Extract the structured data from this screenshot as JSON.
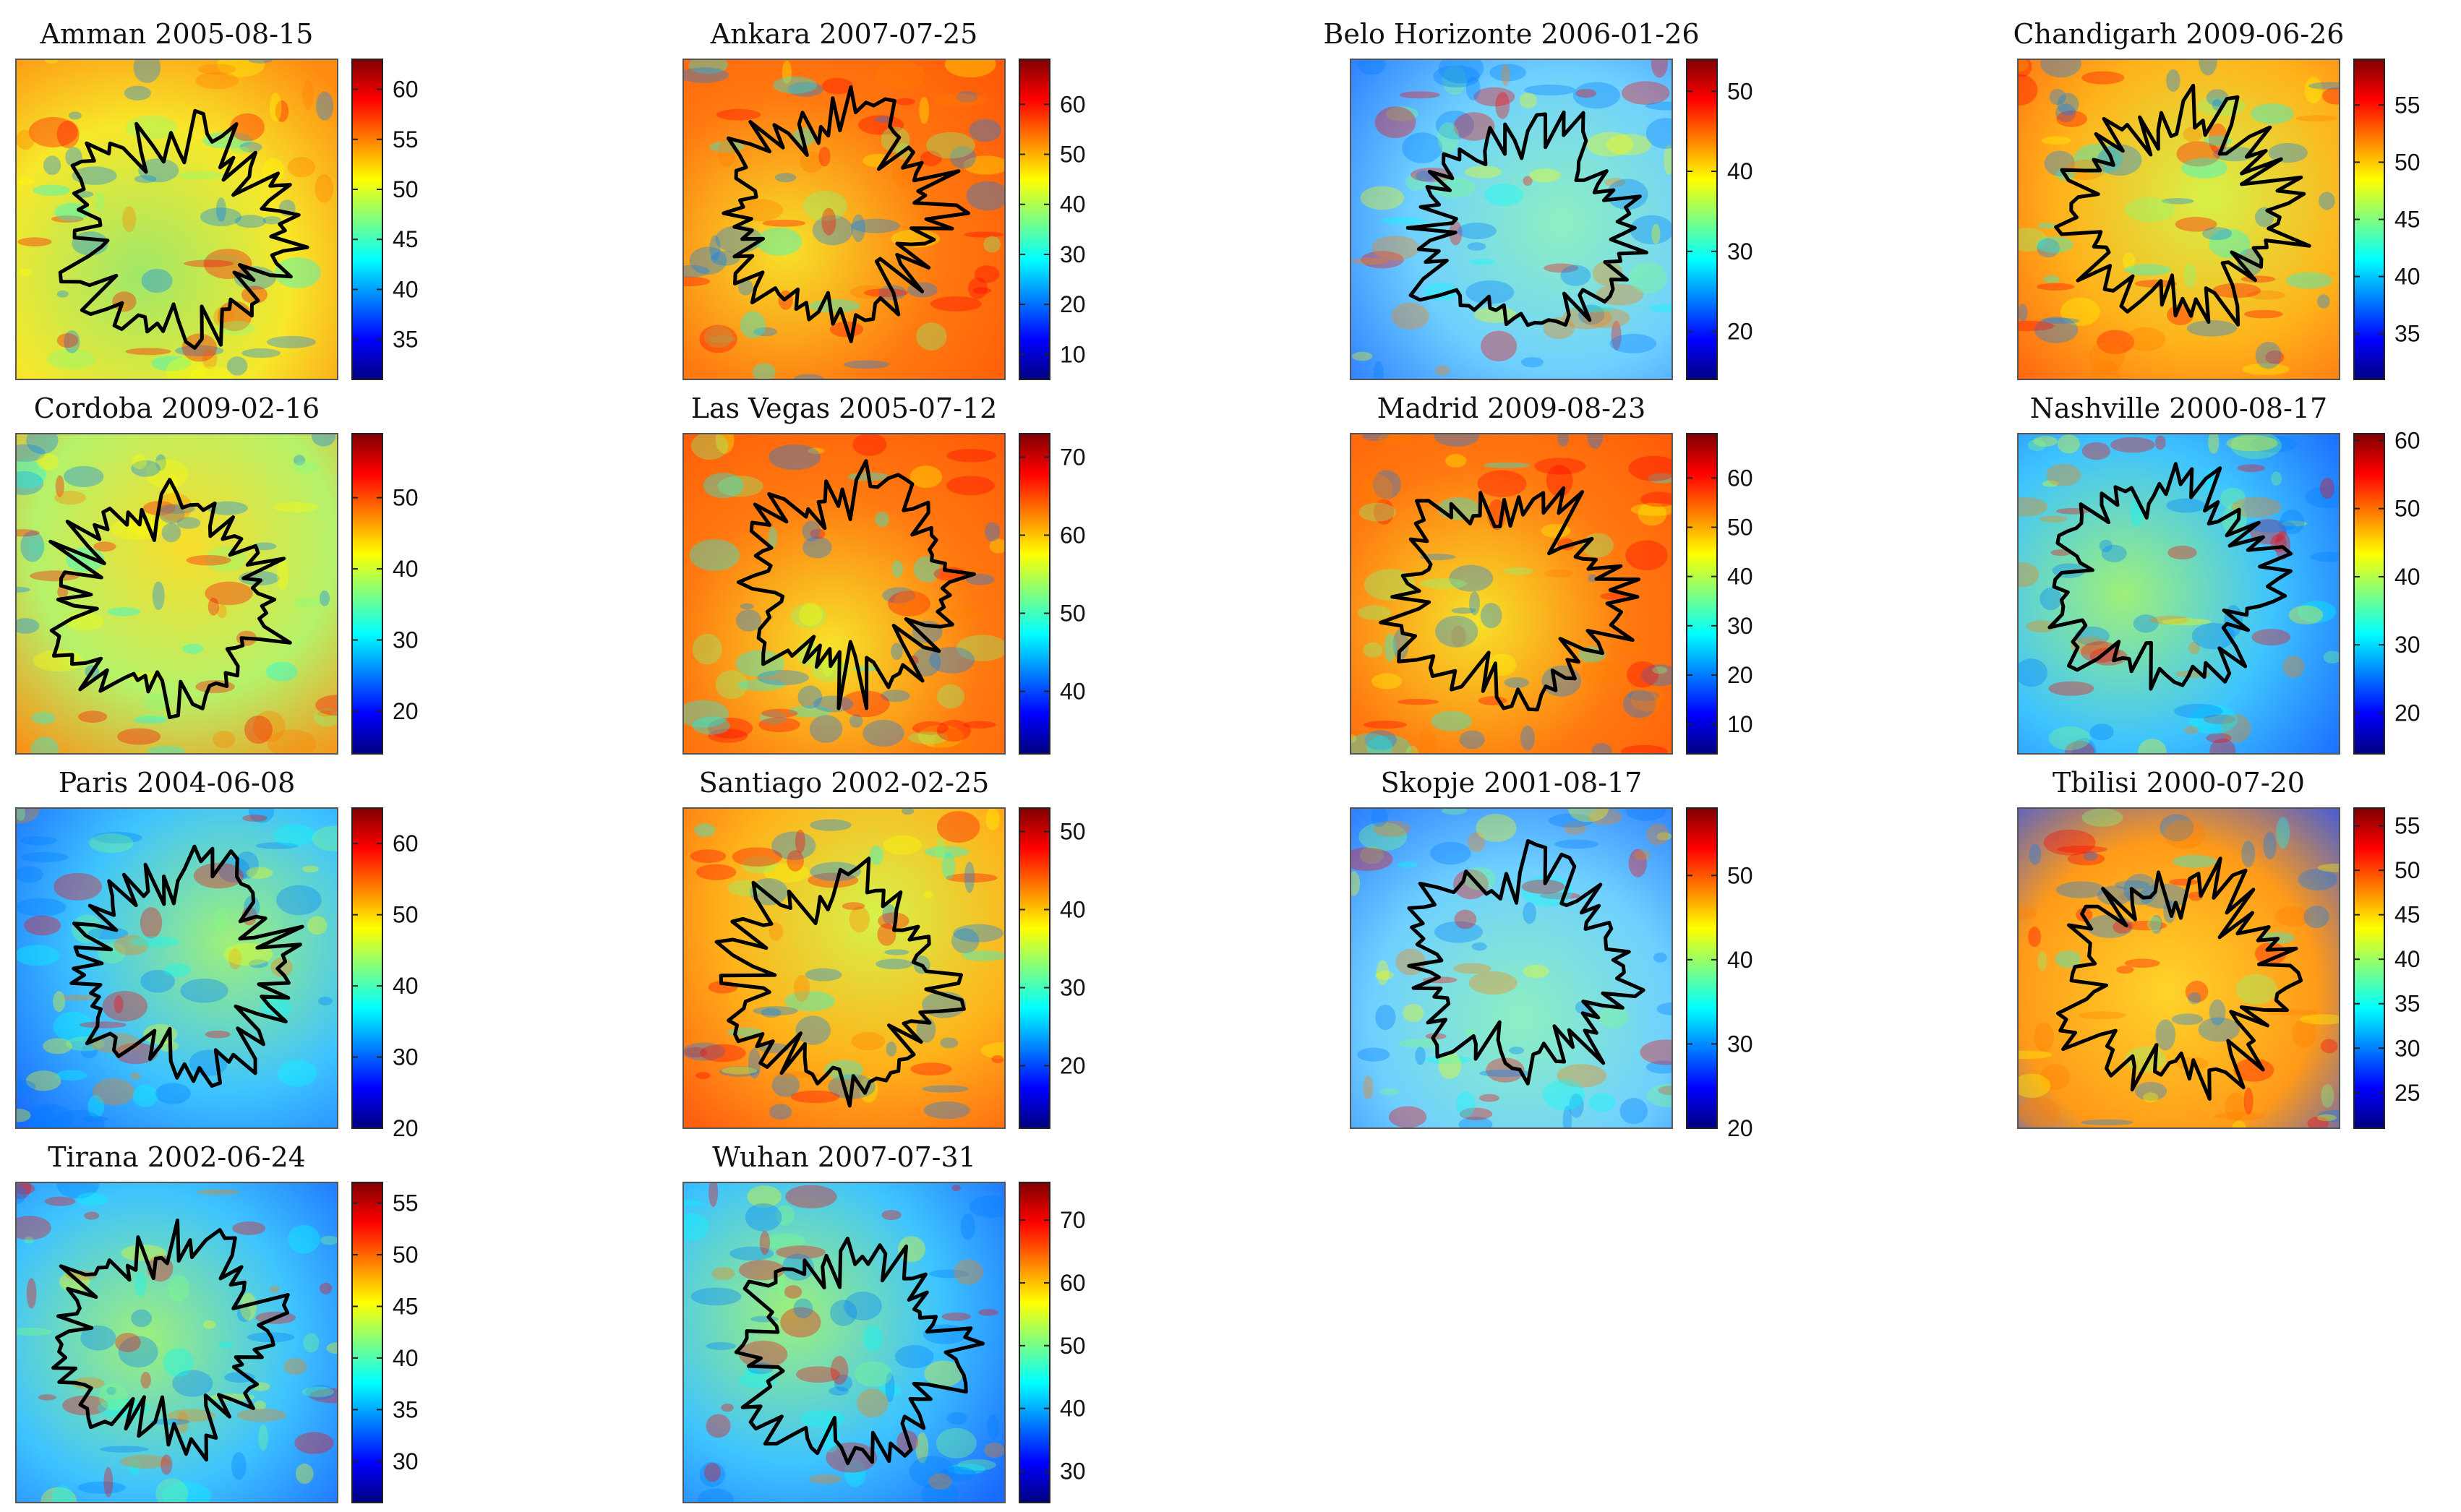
{
  "chart_data": [
    {
      "type": "heatmap",
      "title": "Amman 2005-08-15",
      "colorbar_ticks": [
        35,
        40,
        45,
        50,
        55,
        60
      ],
      "clim": [
        31,
        63
      ],
      "hot_side": "bottom-right"
    },
    {
      "type": "heatmap",
      "title": "Ankara 2007-07-25",
      "colorbar_ticks": [
        10,
        20,
        30,
        40,
        50,
        60
      ],
      "clim": [
        5,
        69
      ],
      "hot_side": "edges"
    },
    {
      "type": "heatmap",
      "title": "Belo Horizonte 2006-01-26",
      "colorbar_ticks": [
        20,
        30,
        40,
        50
      ],
      "clim": [
        14,
        54
      ],
      "hot_side": "top"
    },
    {
      "type": "heatmap",
      "title": "Chandigarh 2009-06-26",
      "colorbar_ticks": [
        35,
        40,
        45,
        50,
        55
      ],
      "clim": [
        31,
        59
      ],
      "hot_side": "left"
    },
    {
      "type": "heatmap",
      "title": "Cordoba 2009-02-16",
      "colorbar_ticks": [
        20,
        30,
        40,
        50
      ],
      "clim": [
        14,
        59
      ],
      "hot_side": "right"
    },
    {
      "type": "heatmap",
      "title": "Las Vegas 2005-07-12",
      "colorbar_ticks": [
        40,
        50,
        60,
        70
      ],
      "clim": [
        32,
        73
      ],
      "hot_side": "edges"
    },
    {
      "type": "heatmap",
      "title": "Madrid 2009-08-23",
      "colorbar_ticks": [
        10,
        20,
        30,
        40,
        50,
        60
      ],
      "clim": [
        4,
        69
      ],
      "hot_side": "edges"
    },
    {
      "type": "heatmap",
      "title": "Nashville 2000-08-17",
      "colorbar_ticks": [
        20,
        30,
        40,
        50,
        60
      ],
      "clim": [
        14,
        61
      ],
      "hot_side": "center"
    },
    {
      "type": "heatmap",
      "title": "Paris 2004-06-08",
      "colorbar_ticks": [
        20,
        30,
        40,
        50,
        60
      ],
      "clim": [
        20,
        65
      ],
      "hot_side": "center"
    },
    {
      "type": "heatmap",
      "title": "Santiago 2002-02-25",
      "colorbar_ticks": [
        20,
        30,
        40,
        50
      ],
      "clim": [
        12,
        53
      ],
      "hot_side": "left"
    },
    {
      "type": "heatmap",
      "title": "Skopje 2001-08-17",
      "colorbar_ticks": [
        20,
        30,
        40,
        50
      ],
      "clim": [
        20,
        58
      ],
      "hot_side": "top"
    },
    {
      "type": "heatmap",
      "title": "Tbilisi 2000-07-20",
      "colorbar_ticks": [
        25,
        30,
        35,
        40,
        45,
        50,
        55
      ],
      "clim": [
        21,
        57
      ],
      "hot_side": "bottom"
    },
    {
      "type": "heatmap",
      "title": "Tirana 2002-06-24",
      "colorbar_ticks": [
        30,
        35,
        40,
        45,
        50,
        55
      ],
      "clim": [
        26,
        57
      ],
      "hot_side": "center"
    },
    {
      "type": "heatmap",
      "title": "Wuhan 2007-07-31",
      "colorbar_ticks": [
        30,
        40,
        50,
        60,
        70
      ],
      "clim": [
        25,
        76
      ],
      "hot_side": "center"
    }
  ],
  "colormap": {
    "name": "jet",
    "stops": [
      "#00007f",
      "#0000ff",
      "#007fff",
      "#00ffff",
      "#7fff7f",
      "#ffff00",
      "#ff7f00",
      "#ff0000",
      "#7f0000"
    ]
  }
}
